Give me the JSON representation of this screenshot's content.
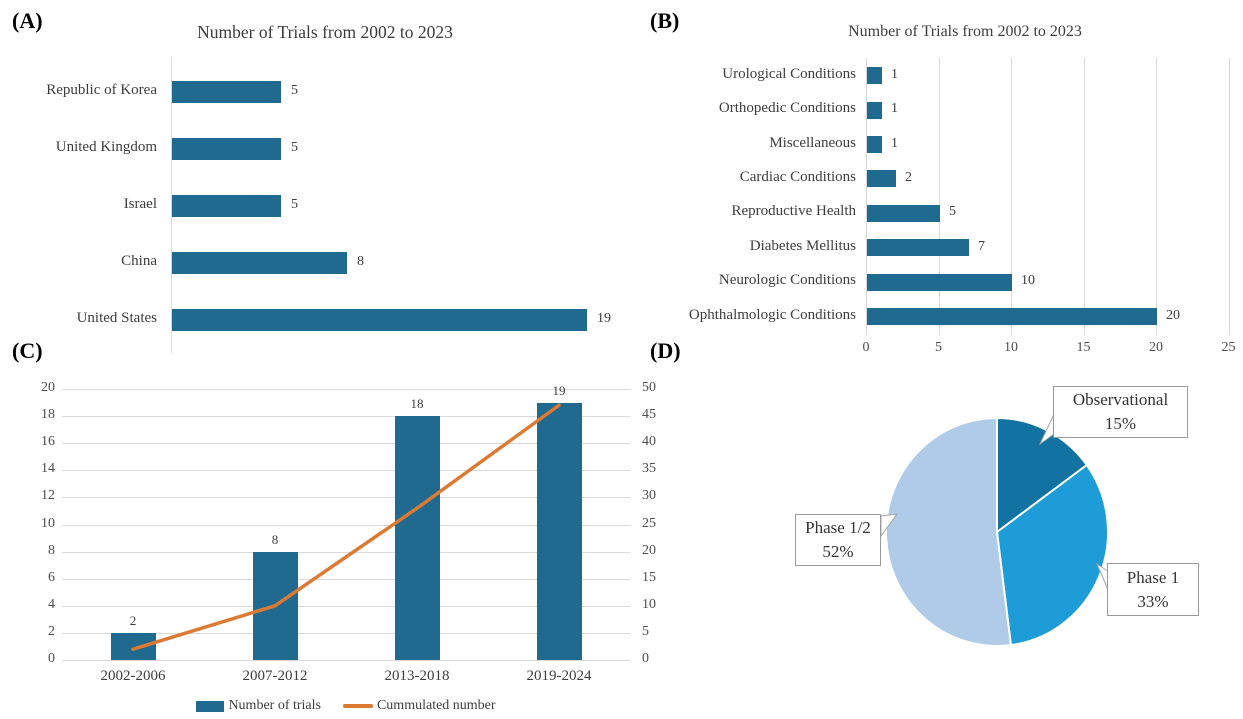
{
  "panels": {
    "a": {
      "tag": "(A)"
    },
    "b": {
      "tag": "(B)"
    },
    "c": {
      "tag": "(C)"
    },
    "d": {
      "tag": "(D)"
    }
  },
  "colors": {
    "bar_blue": "#1F6A8E",
    "line_orange": "#DC7A33",
    "gridline": "#D9D9D9",
    "axis_line": "#D9D9D9",
    "pie_dark_blue": "#1273A2",
    "pie_mid_blue": "#1E9CD7",
    "pie_light_blue": "#AFCBE8",
    "tick_text": "#4D4D4D",
    "label_text": "#3D3D3D"
  },
  "chart_data": [
    {
      "id": "A",
      "type": "bar",
      "orientation": "horizontal",
      "title": "Number of Trials from 2002 to 2023",
      "categories": [
        "Republic of Korea",
        "United Kingdom",
        "Israel",
        "China",
        "United States"
      ],
      "values": [
        5,
        5,
        5,
        8,
        19
      ],
      "value_labels": [
        "5",
        "5",
        "5",
        "8",
        "19"
      ],
      "xlim": [
        0,
        20.6
      ],
      "grid": false,
      "legend": "none"
    },
    {
      "id": "B",
      "type": "bar",
      "orientation": "horizontal",
      "title": "Number of Trials from 2002 to 2023",
      "categories": [
        "Urological Conditions",
        "Orthopedic Conditions",
        "Miscellaneous",
        "Cardiac Conditions",
        "Reproductive Health",
        "Diabetes Mellitus",
        "Neurologic Conditions",
        "Ophthalmologic Conditions"
      ],
      "values": [
        1,
        1,
        1,
        2,
        5,
        7,
        10,
        20
      ],
      "value_labels": [
        "1",
        "1",
        "1",
        "2",
        "5",
        "7",
        "10",
        "20"
      ],
      "x_ticks": [
        0,
        5,
        10,
        15,
        20,
        25
      ],
      "xlim": [
        0,
        25
      ],
      "grid": true,
      "legend": "none"
    },
    {
      "id": "C",
      "type": "combo",
      "categories": [
        "2002-2006",
        "2007-2012",
        "2013-2018",
        "2019-2024"
      ],
      "series": [
        {
          "name": "Number of trials",
          "type": "bar",
          "axis": "left",
          "values": [
            2,
            8,
            18,
            19
          ],
          "value_labels": [
            "2",
            "8",
            "18",
            "19"
          ]
        },
        {
          "name": "Cummulated number",
          "type": "line",
          "axis": "right",
          "values": [
            2,
            10,
            28,
            47
          ]
        }
      ],
      "left_ylim": [
        0,
        20
      ],
      "left_ticks": [
        0,
        2,
        4,
        6,
        8,
        10,
        12,
        14,
        16,
        18,
        20
      ],
      "right_ylim": [
        0,
        50
      ],
      "right_ticks": [
        0,
        5,
        10,
        15,
        20,
        25,
        30,
        35,
        40,
        45,
        50
      ],
      "grid": true,
      "legend_position": "bottom"
    },
    {
      "id": "D",
      "type": "pie",
      "start_angle_deg": 0,
      "direction": "clockwise",
      "slices": [
        {
          "label": "Observational",
          "pct": 15,
          "pct_label": "15%"
        },
        {
          "label": "Phase 1",
          "pct": 33,
          "pct_label": "33%"
        },
        {
          "label": "Phase 1/2",
          "pct": 52,
          "pct_label": "52%"
        }
      ]
    }
  ]
}
